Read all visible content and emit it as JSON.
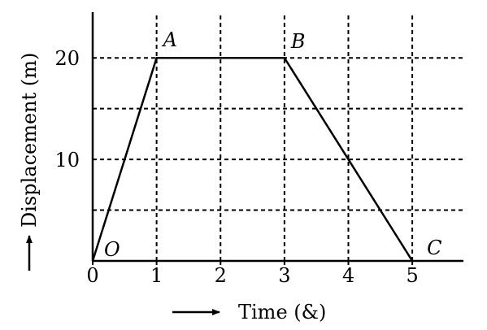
{
  "chart_data": {
    "type": "line",
    "xlabel": "Time (&)",
    "ylabel": "Displacement (m)",
    "xlim": [
      0,
      5.8
    ],
    "ylim": [
      0,
      24.5
    ],
    "x_ticks": [
      0,
      1,
      2,
      3,
      4,
      5
    ],
    "y_ticks_labeled": [
      10,
      20
    ],
    "grid_x": [
      1,
      2,
      3,
      4,
      5
    ],
    "grid_y": [
      5,
      10,
      15,
      20
    ],
    "grid": true,
    "series": [
      {
        "points": [
          {
            "label": "O",
            "x": 0,
            "y": 0
          },
          {
            "label": "A",
            "x": 1,
            "y": 20
          },
          {
            "label": "B",
            "x": 3,
            "y": 20
          },
          {
            "label": "C",
            "x": 5,
            "y": 0
          }
        ]
      }
    ]
  }
}
